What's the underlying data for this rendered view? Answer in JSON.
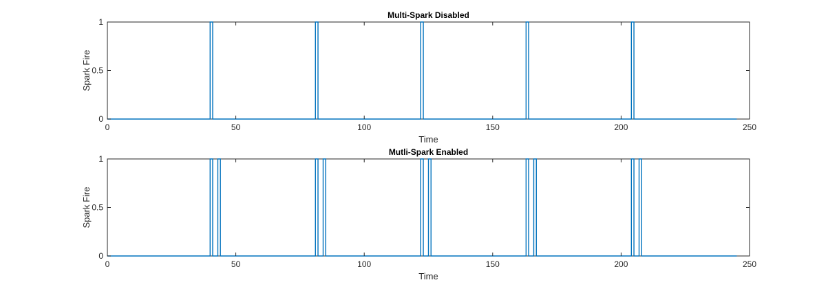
{
  "chart_data": [
    {
      "type": "line",
      "title": "Multi-Spark Disabled",
      "xlabel": "Time",
      "ylabel": "Spark Fire",
      "xlim": [
        0,
        250
      ],
      "ylim": [
        0,
        1
      ],
      "xticks": [
        0,
        50,
        100,
        150,
        200,
        250
      ],
      "yticks": [
        0,
        0.5,
        1
      ],
      "xtick_labels": [
        "0",
        "50",
        "100",
        "150",
        "200",
        "250"
      ],
      "ytick_labels": [
        "0",
        "0.5",
        "1"
      ],
      "grid": false,
      "color": "#0072BD",
      "series": [
        {
          "x": [
            0,
            40,
            40,
            41,
            41,
            81,
            81,
            82,
            82,
            122,
            122,
            123,
            123,
            163,
            163,
            164,
            164,
            204,
            204,
            205,
            205,
            245
          ],
          "y": [
            0,
            0,
            1,
            1,
            0,
            0,
            1,
            1,
            0,
            0,
            1,
            1,
            0,
            0,
            1,
            1,
            0,
            0,
            1,
            1,
            0,
            0
          ]
        }
      ]
    },
    {
      "type": "line",
      "title": "Mutli-Spark Enabled",
      "xlabel": "Time",
      "ylabel": "Spark Fire",
      "xlim": [
        0,
        250
      ],
      "ylim": [
        0,
        1
      ],
      "xticks": [
        0,
        50,
        100,
        150,
        200,
        250
      ],
      "yticks": [
        0,
        0.5,
        1
      ],
      "xtick_labels": [
        "0",
        "50",
        "100",
        "150",
        "200",
        "250"
      ],
      "ytick_labels": [
        "0",
        "0.5",
        "1"
      ],
      "grid": false,
      "color": "#0072BD",
      "series": [
        {
          "x": [
            0,
            40,
            40,
            41,
            41,
            43,
            43,
            44,
            44,
            81,
            81,
            82,
            82,
            84,
            84,
            85,
            85,
            122,
            122,
            123,
            123,
            125,
            125,
            126,
            126,
            163,
            163,
            164,
            164,
            166,
            166,
            167,
            167,
            204,
            204,
            205,
            205,
            207,
            207,
            208,
            208,
            245
          ],
          "y": [
            0,
            0,
            1,
            1,
            0,
            0,
            1,
            1,
            0,
            0,
            1,
            1,
            0,
            0,
            1,
            1,
            0,
            0,
            1,
            1,
            0,
            0,
            1,
            1,
            0,
            0,
            1,
            1,
            0,
            0,
            1,
            1,
            0,
            0,
            1,
            1,
            0,
            0,
            1,
            1,
            0,
            0
          ]
        }
      ]
    }
  ]
}
